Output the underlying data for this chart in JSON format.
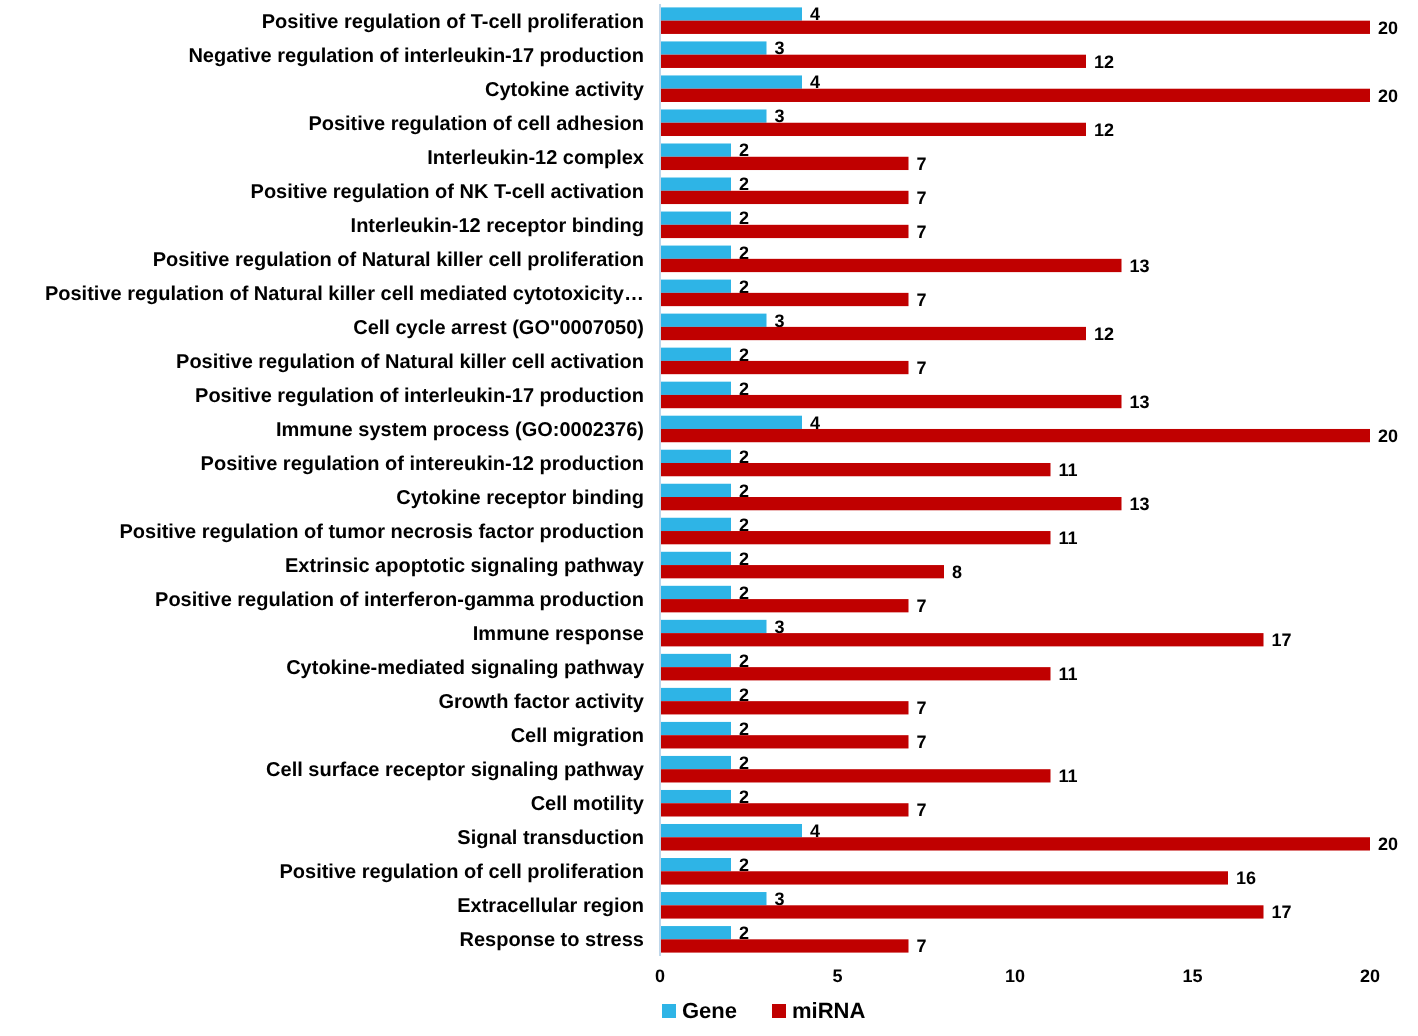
{
  "chart_data": {
    "type": "bar",
    "orientation": "horizontal",
    "categories": [
      "Positive regulation of T-cell proliferation",
      "Negative regulation of interleukin-17 production",
      "Cytokine activity",
      "Positive regulation of cell adhesion",
      "Interleukin-12 complex",
      "Positive regulation of NK T-cell activation",
      "Interleukin-12 receptor binding",
      "Positive regulation of Natural killer cell proliferation",
      "Positive regulation of Natural killer cell mediated cytotoxicity…",
      "Cell cycle arrest (GO\"0007050)",
      "Positive regulation of Natural killer cell activation",
      "Positive regulation of interleukin-17 production",
      "Immune system process (GO:0002376)",
      "Positive regulation of intereukin-12 production",
      "Cytokine receptor binding",
      "Positive regulation of tumor necrosis factor production",
      "Extrinsic apoptotic signaling pathway",
      "Positive regulation of interferon-gamma production",
      "Immune response",
      "Cytokine-mediated signaling pathway",
      "Growth factor activity",
      "Cell migration",
      "Cell surface receptor signaling pathway",
      "Cell motility",
      "Signal transduction",
      "Positive regulation of cell proliferation",
      "Extracellular region",
      "Response to stress"
    ],
    "series": [
      {
        "name": "Gene",
        "color": "#2eb4e6",
        "values": [
          4,
          3,
          4,
          3,
          2,
          2,
          2,
          2,
          2,
          3,
          2,
          2,
          4,
          2,
          2,
          2,
          2,
          2,
          3,
          2,
          2,
          2,
          2,
          2,
          4,
          2,
          3,
          2
        ]
      },
      {
        "name": "miRNA",
        "color": "#c00000",
        "values": [
          20,
          12,
          20,
          12,
          7,
          7,
          7,
          13,
          7,
          12,
          7,
          13,
          20,
          11,
          13,
          11,
          8,
          7,
          17,
          11,
          7,
          7,
          11,
          7,
          20,
          16,
          17,
          7
        ]
      }
    ],
    "xlim": [
      0,
      20
    ],
    "xticks": [
      0,
      5,
      10,
      15,
      20
    ],
    "data_labels": true,
    "legend": "bottom",
    "grid": false
  }
}
